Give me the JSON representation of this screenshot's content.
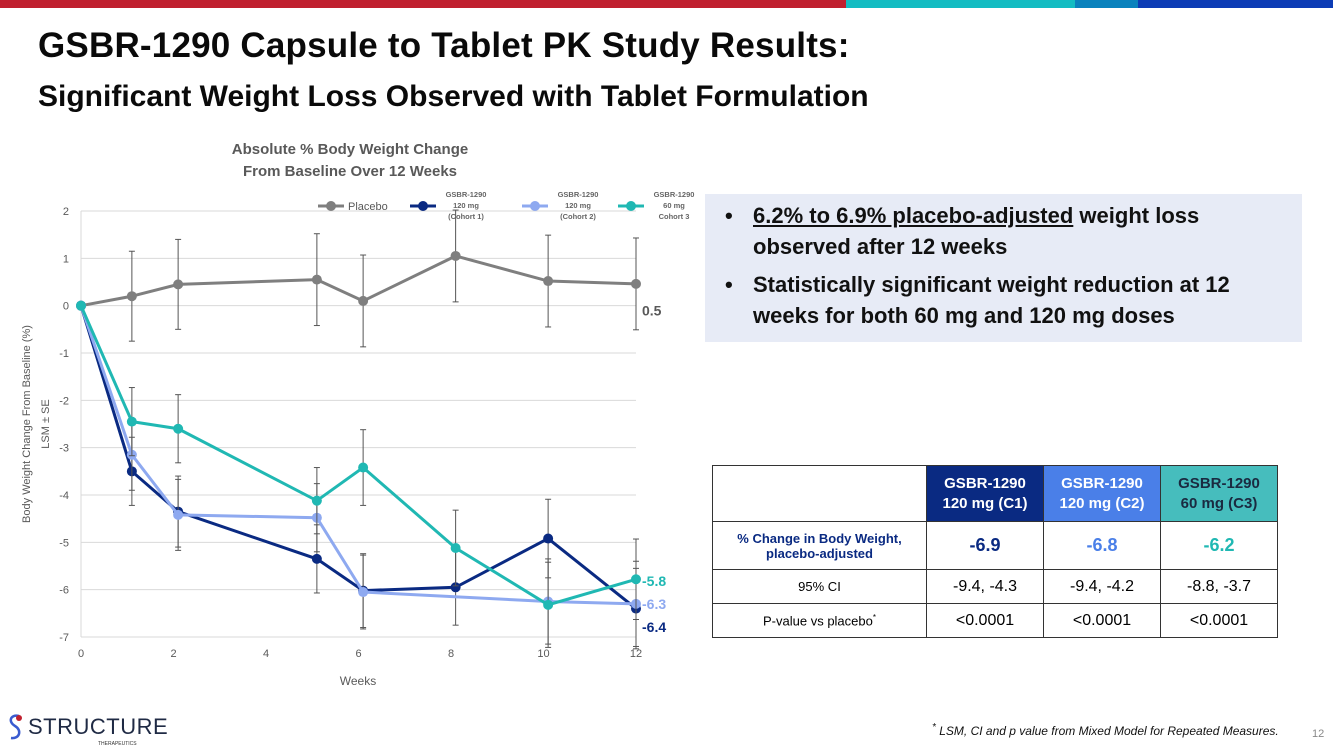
{
  "header": {
    "title": "GSBR-1290 Capsule to Tablet PK Study Results:",
    "subtitle": "Significant Weight Loss Observed with Tablet Formulation"
  },
  "colors": {
    "bar": [
      "#c0202f",
      "#13bcc2",
      "#0a82bd",
      "#0c3cb5"
    ],
    "placebo": "#7f7f7f",
    "c1": "#0a2a82",
    "c2": "#8ea9f0",
    "c3": "#20b8b3"
  },
  "chart_data": {
    "type": "line",
    "title": "Absolute % Body Weight Change",
    "subtitle": "From Baseline Over 12 Weeks",
    "xlabel": "Weeks",
    "ylabel": "Body Weight Change From Baseline  (%)",
    "ylabel2": "LSM ± SE",
    "xlim": [
      0,
      12
    ],
    "ylim": [
      -7,
      2
    ],
    "xticks": [
      "0",
      "2",
      "4",
      "6",
      "8",
      "10",
      "12"
    ],
    "yticks": [
      "2",
      "1",
      "0",
      "-1",
      "-2",
      "-3",
      "-4",
      "-5",
      "-6",
      "-7"
    ],
    "x": [
      0,
      1.1,
      2.1,
      5.1,
      6.1,
      8.1,
      10.1,
      12
    ],
    "series": [
      {
        "name": "Placebo",
        "legend": [
          "Placebo"
        ],
        "values": [
          0,
          0.2,
          0.45,
          0.55,
          0.1,
          1.05,
          0.52,
          0.46
        ],
        "se": [
          0,
          0.95,
          0.95,
          0.97,
          0.97,
          0.97,
          0.97,
          0.97
        ],
        "end_label": "0.5"
      },
      {
        "name": "GSBR-1290 120 mg (Cohort 1)",
        "legend": [
          "GSBR-1290",
          "120 mg",
          "(Cohort 1)"
        ],
        "values": [
          0,
          -3.5,
          -4.35,
          -5.35,
          -6.02,
          -5.95,
          -4.92,
          -6.4
        ],
        "se": [
          0,
          0.72,
          0.75,
          0.72,
          0.78,
          0.8,
          0.83,
          0.85
        ],
        "end_label": "-6.4"
      },
      {
        "name": "GSBR-1290 120 mg (Cohort 2)",
        "legend": [
          "GSBR-1290",
          "120 mg",
          "(Cohort 2)"
        ],
        "values": [
          0,
          -3.15,
          -4.42,
          -4.48,
          -6.05,
          null,
          -6.25,
          -6.3
        ],
        "se": [
          0,
          0.75,
          0.75,
          0.72,
          0.78,
          0,
          0.9,
          0.9
        ],
        "end_label": "-6.3"
      },
      {
        "name": "GSBR-1290 60 mg Cohort 3",
        "legend": [
          "GSBR-1290",
          "60 mg",
          "Cohort 3"
        ],
        "values": [
          0,
          -2.45,
          -2.6,
          -4.12,
          -3.42,
          -5.12,
          -6.32,
          -5.78
        ],
        "se": [
          0,
          0.72,
          0.72,
          0.7,
          0.8,
          0.8,
          0.9,
          0.85
        ],
        "end_label": "-5.8"
      }
    ],
    "legend_position": "top-right",
    "grid": true
  },
  "callout": {
    "b1_u": "6.2% to 6.9% placebo-adjusted",
    "b1_rest": " weight loss observed after 12 weeks",
    "b2": "Statistically significant weight reduction at 12 weeks for both 60 mg and 120 mg doses"
  },
  "table": {
    "headers": [
      [
        "GSBR-1290",
        "120 mg (C1)"
      ],
      [
        "GSBR-1290",
        "120 mg (C2)"
      ],
      [
        "GSBR-1290",
        "60 mg (C3)"
      ]
    ],
    "header_colors": [
      "#0a2a82",
      "#4a7fe8",
      "#46bdbd"
    ],
    "rows": [
      {
        "label": "% Change in Body Weight, placebo-adjusted",
        "values": [
          "-6.9",
          "-6.8",
          "-6.2"
        ]
      },
      {
        "label": "95% CI",
        "values": [
          "-9.4, -4.3",
          "-9.4, -4.2",
          "-8.8, -3.7"
        ]
      },
      {
        "label": "P-value vs placebo",
        "sup": "*",
        "values": [
          "<0.0001",
          "<0.0001",
          "<0.0001"
        ]
      }
    ]
  },
  "footer": {
    "logo": "STRUCTURE",
    "logo_sub": "THERAPEUTICS",
    "note_sup": "*",
    "note": " LSM, CI and p value from Mixed Model for Repeated Measures.",
    "page": "12"
  }
}
